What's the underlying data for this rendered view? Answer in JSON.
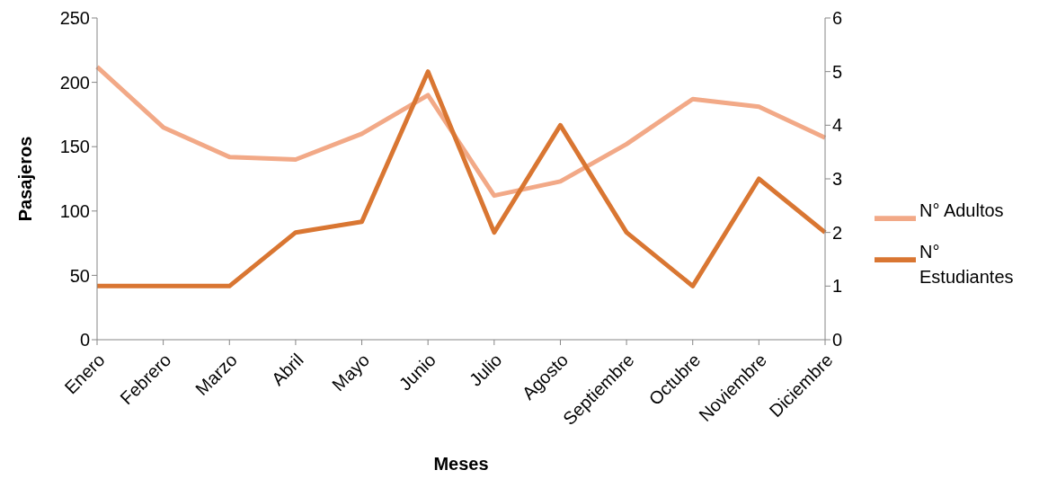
{
  "chart_data": {
    "type": "line",
    "xlabel": "Meses",
    "ylabel": "Pasajeros",
    "categories": [
      "Enero",
      "Febrero",
      "Marzo",
      "Abril",
      "Mayo",
      "Junio",
      "Julio",
      "Agosto",
      "Septiembre",
      "Octubre",
      "Noviembre",
      "Diciembre"
    ],
    "series": [
      {
        "name": "N° Adultos",
        "color": "#f2a987",
        "values": [
          212,
          165,
          142,
          140,
          160,
          190,
          112,
          123,
          152,
          187,
          181,
          157
        ]
      },
      {
        "name": "N° Estudiantes",
        "color": "#d97632",
        "axis": "y2",
        "values": [
          1,
          1,
          1,
          2,
          2.2,
          5,
          2,
          4,
          2,
          1,
          3,
          2
        ]
      }
    ],
    "ylim": [
      0,
      250
    ],
    "yticks": [
      0,
      50,
      100,
      150,
      200,
      250
    ],
    "y2lim": [
      0,
      6
    ],
    "y2ticks": [
      0,
      1,
      2,
      3,
      4,
      5,
      6
    ],
    "grid": false,
    "legend": "right",
    "marker": "none",
    "line_style": "solid"
  }
}
